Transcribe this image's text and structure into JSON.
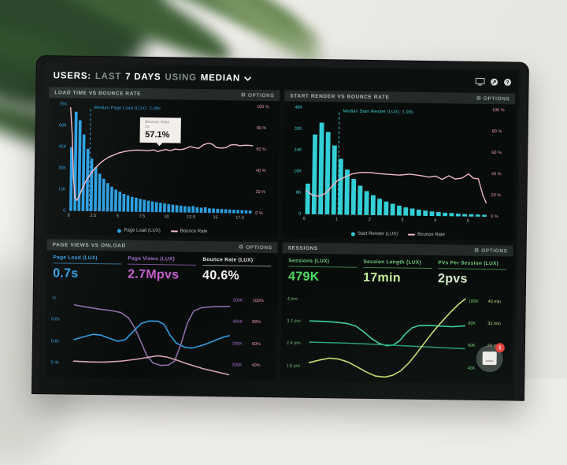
{
  "scene": {
    "backdrop_color": "#eae8e4",
    "plant_color": "#3f6037",
    "bezel_color": "#17191a",
    "screen_color": "#0c110f"
  },
  "topbar": {
    "label_users": "USERS:",
    "word_last": "LAST",
    "word_days": "7 DAYS",
    "word_using": "USING",
    "word_median": "MEDIAN",
    "icons": [
      "monitor-icon",
      "share-icon",
      "help-icon"
    ]
  },
  "panels": {
    "load": {
      "title": "LOAD TIME VS BOUNCE RATE",
      "options": "OPTIONS",
      "tooltip": {
        "label": "Bounce Rate",
        "sub": "1s",
        "value": "57.1%"
      }
    },
    "render": {
      "title": "START RENDER VS BOUNCE RATE",
      "options": "OPTIONS"
    },
    "views": {
      "title": "PAGE VIEWS VS ONLOAD",
      "options": "OPTIONS",
      "metrics": [
        {
          "label": "Page Load (LUX)",
          "value": "0.7s",
          "label_color": "#33a3e8",
          "value_color": "#33a3e8",
          "rule_color": "#2d6a8f"
        },
        {
          "label": "Page Views (LUX)",
          "value": "2.7Mpvs",
          "label_color": "#a86fd0",
          "value_color": "#c45fd0",
          "rule_color": "#7a4f93"
        },
        {
          "label": "Bounce Rate (LUX)",
          "value": "40.6%",
          "label_color": "#efe9eb",
          "value_color": "#f3eff1",
          "rule_color": "#8f8a8d"
        }
      ]
    },
    "sessions": {
      "title": "SESSIONS",
      "options": "OPTIONS",
      "metrics": [
        {
          "label": "Sessions (LUX)",
          "value": "479K",
          "label_color": "#74cf7d",
          "value_color": "#4ade62",
          "rule_color": "#3f7f46"
        },
        {
          "label": "Session Length (LUX)",
          "value": "17min",
          "label_color": "#74cf7d",
          "value_color": "#c7f09a",
          "rule_color": "#3f7f46"
        },
        {
          "label": "PVs Per Session (LUX)",
          "value": "2pvs",
          "label_color": "#74cf7d",
          "value_color": "#d8eecb",
          "rule_color": "#3f7f46"
        }
      ]
    }
  },
  "widget": {
    "badge": "1"
  },
  "chart_data": [
    {
      "id": "load",
      "type": "bar+line",
      "title": "LOAD TIME VS BOUNCE RATE",
      "x_unit": "seconds",
      "x_max": 18.75,
      "x_ticks": [
        "0",
        "2.5",
        "5",
        "7.5",
        "10",
        "12.5",
        "15",
        "17.5"
      ],
      "y_left": [
        "75K",
        "60K",
        "45K",
        "30K",
        "15K",
        "0"
      ],
      "y_right": [
        "100 %",
        "80 %",
        "60 %",
        "40 %",
        "20 %",
        "0 %"
      ],
      "y_left_color": "#2f9fe6",
      "y_right_color": "#e799ad",
      "bars": {
        "name": "Page Load (LUX)",
        "color": "#2a9fe2",
        "max": 75,
        "unit": "K users",
        "values": [
          45,
          70,
          64,
          54,
          44,
          37,
          31,
          26.5,
          23,
          20,
          17.5,
          15.5,
          14,
          12.5,
          11.5,
          10.5,
          10,
          9.2,
          8.6,
          8,
          7.5,
          7,
          6.6,
          6.2,
          5.8,
          5.4,
          5.1,
          4.8,
          4.5,
          4.2,
          4.6,
          3.8,
          3.6,
          3.9,
          3.2,
          3.1,
          2.9,
          2.8,
          2.7,
          2.5,
          2.4,
          2.3,
          2.2,
          2.1,
          2
        ]
      },
      "median": {
        "x": 2.09,
        "label": "Median Page Load (LUX): 2.09s",
        "color": "#2f9fe6"
      },
      "lines": [
        {
          "name": "Bounce Rate",
          "color": "#f3bac8",
          "min": 0,
          "max": 100,
          "width": 1.4,
          "points": [
            [
              0.05,
              97
            ],
            [
              0.25,
              72
            ],
            [
              0.45,
              30
            ],
            [
              0.62,
              12
            ],
            [
              0.8,
              10
            ],
            [
              1.0,
              13
            ],
            [
              1.3,
              20
            ],
            [
              1.7,
              28
            ],
            [
              2.1,
              34
            ],
            [
              2.5,
              39
            ],
            [
              3.0,
              44
            ],
            [
              3.5,
              48
            ],
            [
              4.0,
              51
            ],
            [
              4.5,
              53
            ],
            [
              5.0,
              55
            ],
            [
              5.6,
              56.5
            ],
            [
              6.2,
              57.5
            ],
            [
              6.8,
              58
            ],
            [
              7.4,
              58
            ],
            [
              8.0,
              57.5
            ],
            [
              8.6,
              58.5
            ],
            [
              9.0,
              57
            ],
            [
              9.4,
              58
            ],
            [
              9.8,
              59
            ],
            [
              10.3,
              58
            ],
            [
              10.8,
              59.5
            ],
            [
              11.3,
              59
            ],
            [
              11.8,
              60
            ],
            [
              12.3,
              62
            ],
            [
              12.8,
              61
            ],
            [
              13.2,
              60.5
            ],
            [
              13.7,
              64
            ],
            [
              14.2,
              65.5
            ],
            [
              14.6,
              64.5
            ],
            [
              15.0,
              61.5
            ],
            [
              15.5,
              61
            ],
            [
              16.0,
              61.5
            ],
            [
              16.4,
              64
            ],
            [
              16.9,
              64.5
            ],
            [
              17.4,
              63.5
            ],
            [
              17.9,
              64
            ],
            [
              18.4,
              64
            ],
            [
              18.7,
              63.5
            ]
          ]
        }
      ],
      "legend": [
        {
          "label": "Page Load (LUX)",
          "swatch": "dot",
          "color": "#2a9fe2"
        },
        {
          "label": "Bounce Rate",
          "swatch": "line",
          "color": "#f3bac8"
        }
      ]
    },
    {
      "id": "render",
      "type": "bar+line",
      "title": "START RENDER VS BOUNCE RATE",
      "x_unit": "seconds",
      "x_max": 5.6,
      "x_ticks": [
        "0",
        "1",
        "2",
        "3",
        "4",
        "5"
      ],
      "y_left": [
        "40K",
        "32K",
        "24K",
        "16K",
        "8K",
        "0"
      ],
      "y_right": [
        "100 %",
        "80 %",
        "60 %",
        "40 %",
        "20 %",
        "0 %"
      ],
      "y_left_color": "#3fd3da",
      "y_right_color": "#e799ad",
      "bars": {
        "name": "Start Render (LUX)",
        "color": "#33cfd6",
        "max": 40,
        "unit": "K users",
        "values": [
          11.5,
          30,
          34.5,
          31,
          26,
          21,
          17,
          13.5,
          11,
          9,
          7.5,
          6.2,
          5.2,
          4.4,
          3.7,
          3.1,
          2.7,
          2.3,
          2,
          1.7,
          1.5,
          1.3,
          1.2,
          1,
          0.9,
          0.85,
          0.8,
          0.7
        ]
      },
      "median": {
        "x": 1.03,
        "label": "Median Start Render (LUX): 1.03s",
        "color": "#3fd3da"
      },
      "lines": [
        {
          "name": "Bounce Rate",
          "color": "#f0b6c6",
          "min": 0,
          "max": 100,
          "width": 1.4,
          "points": [
            [
              0.05,
              22
            ],
            [
              0.25,
              18
            ],
            [
              0.45,
              17
            ],
            [
              0.65,
              20
            ],
            [
              0.85,
              27
            ],
            [
              1.0,
              32
            ],
            [
              1.2,
              35
            ],
            [
              1.45,
              38.5
            ],
            [
              1.7,
              40
            ],
            [
              2.0,
              40
            ],
            [
              2.3,
              39
            ],
            [
              2.6,
              38.5
            ],
            [
              2.9,
              38
            ],
            [
              3.2,
              39
            ],
            [
              3.5,
              38
            ],
            [
              3.8,
              36.5
            ],
            [
              4.0,
              37.5
            ],
            [
              4.2,
              34.5
            ],
            [
              4.4,
              38
            ],
            [
              4.6,
              35
            ],
            [
              4.8,
              36
            ],
            [
              5.0,
              40
            ],
            [
              5.15,
              36
            ],
            [
              5.3,
              35.5
            ],
            [
              5.45,
              20
            ],
            [
              5.55,
              13
            ]
          ]
        }
      ],
      "legend": [
        {
          "label": "Start Render (LUX)",
          "swatch": "dot",
          "color": "#33cfd6"
        },
        {
          "label": "Bounce Rate",
          "swatch": "line",
          "color": "#f0b6c6"
        }
      ]
    },
    {
      "id": "views",
      "type": "multi-line",
      "title": "PAGE VIEWS VS ONLOAD",
      "x_max": 100,
      "y_left": [
        "1s",
        "0.8s",
        "0.6s",
        "0.4s"
      ],
      "y_right_a": [
        "500K",
        "400K",
        "300K",
        "200K"
      ],
      "y_right_b": [
        "100%",
        "80%",
        "60%",
        "40%"
      ],
      "y_pos": [
        6.7,
        33.3,
        60,
        86.7
      ],
      "y_left_color": "#33a3e8",
      "y_right_a_color": "#a86fd0",
      "y_right_b_color": "#ef93ac",
      "lines": [
        {
          "name": "Page Load (LUX)",
          "color": "#2f9fe6",
          "min": 0.3,
          "max": 1.05,
          "width": 1.6,
          "points": [
            [
              0,
              0.62
            ],
            [
              6,
              0.645
            ],
            [
              12,
              0.67
            ],
            [
              17,
              0.665
            ],
            [
              23,
              0.635
            ],
            [
              28,
              0.61
            ],
            [
              33,
              0.625
            ],
            [
              38,
              0.7
            ],
            [
              43,
              0.775
            ],
            [
              48,
              0.8
            ],
            [
              54,
              0.8
            ],
            [
              58,
              0.77
            ],
            [
              62,
              0.67
            ],
            [
              66,
              0.6
            ],
            [
              71,
              0.565
            ],
            [
              76,
              0.555
            ],
            [
              81,
              0.575
            ],
            [
              86,
              0.6
            ],
            [
              91,
              0.63
            ],
            [
              96,
              0.66
            ],
            [
              100,
              0.675
            ]
          ]
        },
        {
          "name": "Page Views (LUX)",
          "color": "#8f6ba8",
          "min": 160,
          "max": 520,
          "width": 1.6,
          "points": [
            [
              0,
              467
            ],
            [
              8,
              458
            ],
            [
              16,
              450
            ],
            [
              24,
              444
            ],
            [
              30,
              436
            ],
            [
              35,
              412
            ],
            [
              39,
              370
            ],
            [
              43,
              310
            ],
            [
              47,
              248
            ],
            [
              51,
              215
            ],
            [
              56,
              204
            ],
            [
              61,
              206
            ],
            [
              65,
              224
            ],
            [
              69,
              300
            ],
            [
              73,
              395
            ],
            [
              77,
              448
            ],
            [
              82,
              463
            ],
            [
              90,
              468
            ],
            [
              100,
              470
            ]
          ]
        },
        {
          "name": "Bounce Rate (LUX)",
          "color": "#d9a3b2",
          "min": 30,
          "max": 105,
          "width": 1.6,
          "points": [
            [
              0,
              42
            ],
            [
              10,
              41.5
            ],
            [
              20,
              41.5
            ],
            [
              30,
              42.5
            ],
            [
              40,
              44.5
            ],
            [
              48,
              46.5
            ],
            [
              54,
              48
            ],
            [
              60,
              47
            ],
            [
              66,
              44.5
            ],
            [
              72,
              41.5
            ],
            [
              78,
              39
            ],
            [
              84,
              36.5
            ],
            [
              92,
              34
            ],
            [
              100,
              31.5
            ]
          ]
        }
      ]
    },
    {
      "id": "sessions",
      "type": "multi-line",
      "title": "SESSIONS",
      "x_max": 100,
      "y_left": [
        "4 pvs",
        "3.2 pvs",
        "2.4 pvs",
        "1.6 pvs"
      ],
      "y_right_a": [
        "100K",
        "80K",
        "60K",
        "40K"
      ],
      "y_right_b": [
        "40 min",
        "32 min",
        "24 min",
        ""
      ],
      "y_pos": [
        3.4,
        31,
        58.6,
        86.2
      ],
      "y_left_color": "#7ac87a",
      "y_right_a_color": "#6fcf6f",
      "y_right_b_color": "#b9e089",
      "lines": [
        {
          "name": "PVs Per Session (LUX)",
          "color": "#40d1a0",
          "min": 1.2,
          "max": 4.1,
          "width": 1.6,
          "points": [
            [
              0,
              3.22
            ],
            [
              8,
              3.21
            ],
            [
              16,
              3.19
            ],
            [
              24,
              3.15
            ],
            [
              30,
              3.05
            ],
            [
              35,
              2.85
            ],
            [
              40,
              2.62
            ],
            [
              45,
              2.45
            ],
            [
              50,
              2.37
            ],
            [
              54,
              2.4
            ],
            [
              58,
              2.55
            ],
            [
              62,
              2.82
            ],
            [
              66,
              3.02
            ],
            [
              70,
              3.1
            ],
            [
              76,
              3.12
            ],
            [
              84,
              3.1
            ],
            [
              92,
              3.08
            ],
            [
              100,
              3.12
            ]
          ]
        },
        {
          "name": "Sessions (LUX)",
          "color": "#2aa880",
          "min": 1.2,
          "max": 4.1,
          "width": 1.4,
          "points": [
            [
              0,
              2.46
            ],
            [
              20,
              2.45
            ],
            [
              40,
              2.42
            ],
            [
              60,
              2.38
            ],
            [
              80,
              2.34
            ],
            [
              100,
              2.3
            ]
          ]
        },
        {
          "name": "Session Length (LUX)",
          "color": "#cde26e",
          "min": 1.2,
          "max": 4.1,
          "width": 1.6,
          "points": [
            [
              0,
              1.73
            ],
            [
              7,
              1.83
            ],
            [
              13,
              1.9
            ],
            [
              19,
              1.87
            ],
            [
              25,
              1.77
            ],
            [
              31,
              1.6
            ],
            [
              37,
              1.42
            ],
            [
              43,
              1.28
            ],
            [
              49,
              1.25
            ],
            [
              54,
              1.32
            ],
            [
              59,
              1.48
            ],
            [
              64,
              1.75
            ],
            [
              69,
              2.1
            ],
            [
              74,
              2.48
            ],
            [
              79,
              2.85
            ],
            [
              85,
              3.25
            ],
            [
              91,
              3.62
            ],
            [
              96,
              3.9
            ],
            [
              100,
              4.08
            ]
          ]
        }
      ]
    }
  ]
}
